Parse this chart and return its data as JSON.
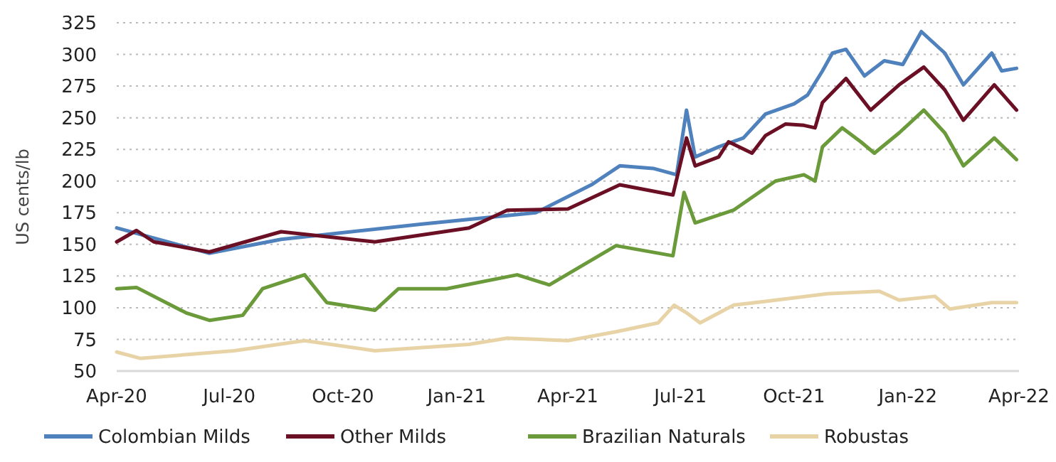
{
  "chart_data": {
    "type": "line",
    "ylabel": "US cents/lb",
    "xlim": [
      "2020-04-01",
      "2022-04-01"
    ],
    "ylim": [
      50,
      325
    ],
    "yticks": [
      50,
      75,
      100,
      125,
      150,
      175,
      200,
      225,
      250,
      275,
      300,
      325
    ],
    "xticks": [
      {
        "value": "2020-04-01",
        "label": "Apr-20"
      },
      {
        "value": "2020-07-01",
        "label": "Jul-20"
      },
      {
        "value": "2020-10-01",
        "label": "Oct-20"
      },
      {
        "value": "2021-01-01",
        "label": "Jan-21"
      },
      {
        "value": "2021-04-01",
        "label": "Apr-21"
      },
      {
        "value": "2021-07-01",
        "label": "Jul-21"
      },
      {
        "value": "2021-10-01",
        "label": "Oct-21"
      },
      {
        "value": "2022-01-01",
        "label": "Jan-22"
      },
      {
        "value": "2022-04-01",
        "label": "Apr-22"
      }
    ],
    "grid": "y",
    "legend": "bottom",
    "marker": "none",
    "line_style": "solid",
    "series": [
      {
        "name": "Colombian Milds",
        "color": "#4f81bd",
        "x": [
          "2020-04-01",
          "2020-06-15",
          "2020-08-12",
          "2020-12-04",
          "2021-03-06",
          "2021-04-20",
          "2021-05-13",
          "2021-06-09",
          "2021-06-28",
          "2021-07-06",
          "2021-07-13",
          "2021-08-01",
          "2021-08-21",
          "2021-09-08",
          "2021-10-01",
          "2021-10-12",
          "2021-10-24",
          "2021-11-01",
          "2021-11-12",
          "2021-11-27",
          "2021-12-13",
          "2021-12-28",
          "2022-01-12",
          "2022-01-31",
          "2022-02-15",
          "2022-03-10",
          "2022-03-18",
          "2022-03-30"
        ],
        "values": [
          163,
          143,
          154,
          166,
          175,
          197,
          212,
          210,
          205,
          256,
          219,
          227,
          234,
          253,
          261,
          268,
          287,
          301,
          304,
          283,
          295,
          292,
          318,
          301,
          276,
          301,
          287,
          289
        ]
      },
      {
        "name": "Other Milds",
        "color": "#6b0f24",
        "x": [
          "2020-04-01",
          "2020-04-17",
          "2020-05-01",
          "2020-06-15",
          "2020-08-12",
          "2020-10-27",
          "2021-01-11",
          "2021-02-11",
          "2021-04-01",
          "2021-05-13",
          "2021-06-25",
          "2021-07-06",
          "2021-07-13",
          "2021-08-01",
          "2021-08-09",
          "2021-08-28",
          "2021-09-08",
          "2021-09-24",
          "2021-10-09",
          "2021-10-18",
          "2021-10-24",
          "2021-11-12",
          "2021-12-02",
          "2021-12-25",
          "2022-01-14",
          "2022-01-31",
          "2022-02-15",
          "2022-03-12",
          "2022-03-30"
        ],
        "values": [
          152,
          161,
          152,
          144,
          160,
          152,
          163,
          177,
          178,
          197,
          189,
          234,
          212,
          219,
          231,
          222,
          236,
          245,
          244,
          242,
          262,
          281,
          256,
          276,
          290,
          272,
          248,
          276,
          256
        ]
      },
      {
        "name": "Brazilian Naturals",
        "color": "#6a9a3a",
        "x": [
          "2020-04-01",
          "2020-04-17",
          "2020-05-27",
          "2020-06-15",
          "2020-07-12",
          "2020-07-28",
          "2020-08-31",
          "2020-09-18",
          "2020-10-27",
          "2020-11-15",
          "2020-12-24",
          "2021-02-19",
          "2021-03-17",
          "2021-05-10",
          "2021-06-25",
          "2021-07-04",
          "2021-07-13",
          "2021-08-13",
          "2021-09-16",
          "2021-10-09",
          "2021-10-18",
          "2021-10-24",
          "2021-11-09",
          "2021-11-24",
          "2021-12-05",
          "2021-12-25",
          "2022-01-14",
          "2022-01-31",
          "2022-02-15",
          "2022-03-12",
          "2022-03-30"
        ],
        "values": [
          115,
          116,
          96,
          90,
          94,
          115,
          126,
          104,
          98,
          115,
          115,
          126,
          118,
          149,
          141,
          191,
          167,
          177,
          200,
          205,
          200,
          227,
          242,
          231,
          222,
          238,
          256,
          238,
          212,
          234,
          217
        ]
      },
      {
        "name": "Robustas",
        "color": "#e8d3a6",
        "x": [
          "2020-04-01",
          "2020-04-20",
          "2020-07-05",
          "2020-08-31",
          "2020-10-27",
          "2021-01-11",
          "2021-02-11",
          "2021-04-01",
          "2021-05-10",
          "2021-06-13",
          "2021-06-26",
          "2021-07-06",
          "2021-07-17",
          "2021-08-13",
          "2021-09-08",
          "2021-10-28",
          "2021-12-09",
          "2021-12-25",
          "2022-01-23",
          "2022-02-04",
          "2022-03-10",
          "2022-03-30"
        ],
        "values": [
          65,
          60,
          66,
          74,
          66,
          71,
          76,
          74,
          81,
          88,
          102,
          96,
          88,
          102,
          105,
          111,
          113,
          106,
          109,
          99,
          104,
          104
        ]
      }
    ]
  }
}
